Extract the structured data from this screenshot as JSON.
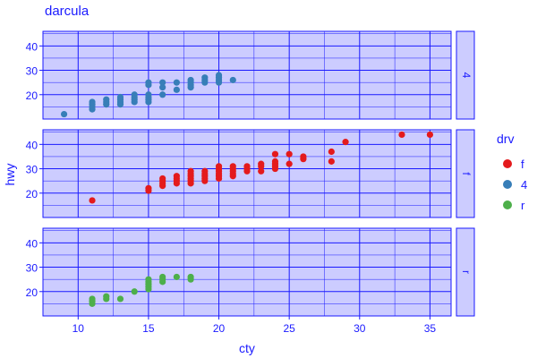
{
  "chart_data": {
    "type": "scatter",
    "title": "darcula",
    "xlabel": "cty",
    "ylabel": "hwy",
    "xlim": [
      7.5,
      36.5
    ],
    "ylim": [
      10,
      46
    ],
    "x_ticks": [
      10,
      15,
      20,
      25,
      30,
      35
    ],
    "y_ticks": [
      20,
      30,
      40
    ],
    "grid": true,
    "facet_by": "drv",
    "legend": {
      "title": "drv",
      "position": "right",
      "entries": [
        {
          "label": "f",
          "color": "#e41a1c"
        },
        {
          "label": "4",
          "color": "#377eb8"
        },
        {
          "label": "r",
          "color": "#4daf4a"
        }
      ]
    },
    "panels": [
      {
        "label": "4",
        "color": "#377eb8",
        "points": [
          [
            9,
            12
          ],
          [
            11,
            14
          ],
          [
            11,
            15
          ],
          [
            11,
            16
          ],
          [
            11,
            17
          ],
          [
            12,
            16
          ],
          [
            12,
            17
          ],
          [
            12,
            18
          ],
          [
            13,
            16
          ],
          [
            13,
            17
          ],
          [
            13,
            18
          ],
          [
            13,
            19
          ],
          [
            14,
            17
          ],
          [
            14,
            18
          ],
          [
            14,
            19
          ],
          [
            14,
            20
          ],
          [
            15,
            17
          ],
          [
            15,
            18
          ],
          [
            15,
            19
          ],
          [
            15,
            20
          ],
          [
            15,
            24
          ],
          [
            15,
            25
          ],
          [
            16,
            20
          ],
          [
            16,
            23
          ],
          [
            16,
            25
          ],
          [
            17,
            22
          ],
          [
            17,
            25
          ],
          [
            18,
            23
          ],
          [
            18,
            24
          ],
          [
            18,
            25
          ],
          [
            18,
            26
          ],
          [
            19,
            25
          ],
          [
            19,
            26
          ],
          [
            19,
            27
          ],
          [
            20,
            25
          ],
          [
            20,
            26
          ],
          [
            20,
            27
          ],
          [
            20,
            28
          ],
          [
            21,
            26
          ]
        ]
      },
      {
        "label": "f",
        "color": "#e41a1c",
        "points": [
          [
            11,
            17
          ],
          [
            15,
            21
          ],
          [
            15,
            22
          ],
          [
            16,
            23
          ],
          [
            16,
            24
          ],
          [
            16,
            25
          ],
          [
            16,
            26
          ],
          [
            17,
            24
          ],
          [
            17,
            25
          ],
          [
            17,
            26
          ],
          [
            17,
            27
          ],
          [
            18,
            24
          ],
          [
            18,
            25
          ],
          [
            18,
            26
          ],
          [
            18,
            27
          ],
          [
            18,
            28
          ],
          [
            18,
            29
          ],
          [
            19,
            25
          ],
          [
            19,
            26
          ],
          [
            19,
            27
          ],
          [
            19,
            28
          ],
          [
            19,
            29
          ],
          [
            20,
            26
          ],
          [
            20,
            27
          ],
          [
            20,
            28
          ],
          [
            20,
            29
          ],
          [
            20,
            30
          ],
          [
            20,
            31
          ],
          [
            21,
            27
          ],
          [
            21,
            28
          ],
          [
            21,
            29
          ],
          [
            21,
            30
          ],
          [
            21,
            31
          ],
          [
            22,
            29
          ],
          [
            22,
            30
          ],
          [
            22,
            31
          ],
          [
            23,
            29
          ],
          [
            23,
            31
          ],
          [
            23,
            32
          ],
          [
            24,
            30
          ],
          [
            24,
            31
          ],
          [
            24,
            32
          ],
          [
            24,
            33
          ],
          [
            24,
            36
          ],
          [
            25,
            32
          ],
          [
            25,
            36
          ],
          [
            26,
            34
          ],
          [
            26,
            35
          ],
          [
            28,
            33
          ],
          [
            28,
            37
          ],
          [
            29,
            41
          ],
          [
            33,
            44
          ],
          [
            35,
            44
          ]
        ]
      },
      {
        "label": "r",
        "color": "#4daf4a",
        "points": [
          [
            11,
            15
          ],
          [
            11,
            16
          ],
          [
            11,
            17
          ],
          [
            12,
            17
          ],
          [
            12,
            18
          ],
          [
            13,
            17
          ],
          [
            14,
            20
          ],
          [
            15,
            21
          ],
          [
            15,
            22
          ],
          [
            15,
            23
          ],
          [
            15,
            24
          ],
          [
            15,
            25
          ],
          [
            16,
            24
          ],
          [
            16,
            25
          ],
          [
            16,
            26
          ],
          [
            17,
            26
          ],
          [
            18,
            25
          ],
          [
            18,
            26
          ]
        ]
      }
    ]
  }
}
